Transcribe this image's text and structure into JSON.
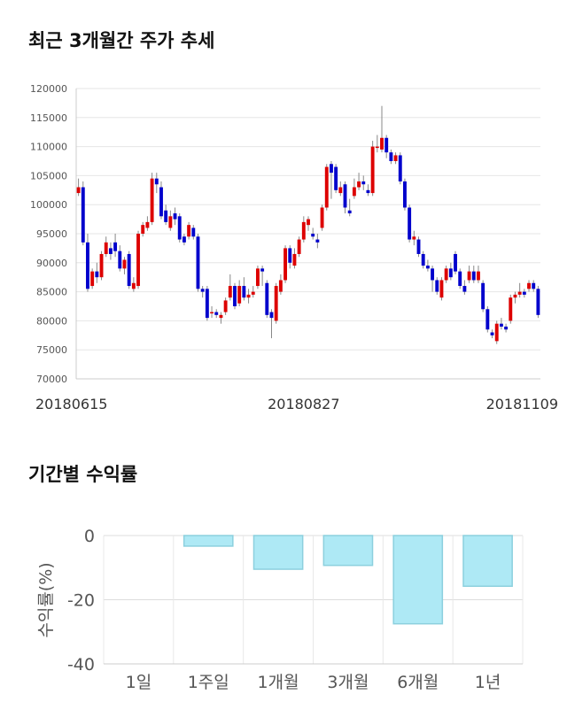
{
  "sections": {
    "price_title": "최근 3개월간 주가 추세",
    "return_title": "기간별 수익률"
  },
  "colors": {
    "up": "#dd0000",
    "down": "#0000cc",
    "return_bar": "#aee9f5",
    "return_bar_border": "#8cd0de"
  },
  "chart_data": [
    {
      "type": "candlestick",
      "title": "최근 3개월간 주가 추세",
      "ylim": [
        70000,
        120000
      ],
      "yticks": [
        "120000",
        "115000",
        "110000",
        "105000",
        "100000",
        "95000",
        "90000",
        "85000",
        "80000",
        "75000",
        "70000"
      ],
      "ytick_values": [
        120000,
        115000,
        110000,
        105000,
        100000,
        95000,
        90000,
        85000,
        80000,
        75000,
        70000
      ],
      "x_labels": [
        "20180615",
        "20180827",
        "20181109"
      ],
      "x_label_index": [
        0,
        49,
        98
      ],
      "grid": true,
      "candles": [
        [
          102000,
          103000,
          104500,
          101500
        ],
        [
          103000,
          93500,
          104000,
          93000
        ],
        [
          93500,
          85500,
          95000,
          85000
        ],
        [
          86000,
          88500,
          89000,
          85500
        ],
        [
          88500,
          87500,
          90000,
          86500
        ],
        [
          87500,
          91500,
          92000,
          87000
        ],
        [
          91500,
          93500,
          94500,
          91000
        ],
        [
          92500,
          91500,
          93500,
          90500
        ],
        [
          93500,
          92000,
          95000,
          91000
        ],
        [
          92000,
          89000,
          93000,
          88500
        ],
        [
          89000,
          90500,
          91000,
          88000
        ],
        [
          91500,
          86000,
          92000,
          85500
        ],
        [
          85500,
          86500,
          87500,
          85000
        ],
        [
          86000,
          95000,
          95500,
          85500
        ],
        [
          95000,
          96500,
          97000,
          94500
        ],
        [
          96000,
          97000,
          98000,
          95500
        ],
        [
          97000,
          104500,
          105500,
          96500
        ],
        [
          104500,
          103500,
          105500,
          102000
        ],
        [
          103000,
          98000,
          104000,
          97500
        ],
        [
          99000,
          97000,
          100000,
          96500
        ],
        [
          96000,
          98000,
          99000,
          95500
        ],
        [
          98500,
          97500,
          99500,
          96500
        ],
        [
          98000,
          94000,
          98500,
          93500
        ],
        [
          94500,
          93500,
          95000,
          93000
        ],
        [
          94500,
          96500,
          97000,
          94000
        ],
        [
          96000,
          94500,
          96500,
          94000
        ],
        [
          94500,
          85500,
          95000,
          85000
        ],
        [
          85500,
          85000,
          86000,
          84000
        ],
        [
          85500,
          80500,
          86000,
          80000
        ],
        [
          81500,
          81500,
          82500,
          80500
        ],
        [
          81500,
          81000,
          82000,
          80500
        ],
        [
          80500,
          81000,
          81500,
          79500
        ],
        [
          81500,
          83500,
          84000,
          81000
        ],
        [
          84000,
          86000,
          88000,
          83500
        ],
        [
          86000,
          82500,
          86500,
          82000
        ],
        [
          83000,
          86000,
          87000,
          82500
        ],
        [
          86000,
          84000,
          87500,
          83500
        ],
        [
          84000,
          84500,
          85500,
          83000
        ],
        [
          84500,
          85000,
          86000,
          84000
        ],
        [
          86000,
          89000,
          89500,
          85500
        ],
        [
          89000,
          88500,
          89500,
          86000
        ],
        [
          86500,
          81000,
          87000,
          80500
        ],
        [
          81500,
          80500,
          82000,
          77000
        ],
        [
          80000,
          86000,
          86500,
          79500
        ],
        [
          85000,
          87000,
          88000,
          84500
        ],
        [
          87000,
          92500,
          93000,
          86500
        ],
        [
          92500,
          90000,
          93000,
          89000
        ],
        [
          89500,
          91500,
          92500,
          89000
        ],
        [
          91500,
          94000,
          94500,
          91000
        ],
        [
          94000,
          97000,
          98000,
          93500
        ],
        [
          96500,
          97500,
          98000,
          95500
        ],
        [
          95000,
          94500,
          96000,
          94000
        ],
        [
          94000,
          93500,
          95000,
          92500
        ],
        [
          96000,
          99500,
          100000,
          95500
        ],
        [
          99500,
          106500,
          107000,
          99000
        ],
        [
          107000,
          105500,
          107500,
          101000
        ],
        [
          106500,
          102500,
          107000,
          102000
        ],
        [
          102000,
          103000,
          104000,
          101500
        ],
        [
          103500,
          99500,
          104000,
          98500
        ],
        [
          99000,
          98500,
          101000,
          98000
        ],
        [
          101500,
          103000,
          104500,
          101000
        ],
        [
          103000,
          104000,
          105500,
          102500
        ],
        [
          104000,
          103500,
          105000,
          102500
        ],
        [
          102500,
          102000,
          103500,
          101500
        ],
        [
          102000,
          110000,
          111000,
          101500
        ],
        [
          110000,
          110000,
          112000,
          109000
        ],
        [
          109500,
          111500,
          117000,
          109000
        ],
        [
          111500,
          109000,
          112000,
          108000
        ],
        [
          109000,
          107500,
          109500,
          107000
        ],
        [
          107500,
          108500,
          109000,
          107000
        ],
        [
          108500,
          104000,
          109000,
          103500
        ],
        [
          104000,
          99500,
          104500,
          99000
        ],
        [
          99500,
          94000,
          100000,
          93500
        ],
        [
          94000,
          94500,
          95500,
          93000
        ],
        [
          94000,
          91500,
          94500,
          91000
        ],
        [
          91500,
          89500,
          92000,
          89000
        ],
        [
          89500,
          89000,
          90500,
          88500
        ],
        [
          89000,
          87000,
          89500,
          85000
        ],
        [
          87000,
          85000,
          87500,
          84500
        ],
        [
          84000,
          87000,
          87500,
          83500
        ],
        [
          87000,
          89000,
          89500,
          86500
        ],
        [
          89000,
          87500,
          90000,
          87000
        ],
        [
          91500,
          88500,
          92000,
          88000
        ],
        [
          88500,
          86000,
          89000,
          85500
        ],
        [
          86000,
          85000,
          87000,
          84500
        ],
        [
          87000,
          88500,
          89500,
          86500
        ],
        [
          88500,
          87000,
          89500,
          86500
        ],
        [
          87000,
          88500,
          89500,
          86500
        ],
        [
          86500,
          82000,
          87000,
          81500
        ],
        [
          82000,
          78500,
          82500,
          78000
        ],
        [
          78000,
          77500,
          78500,
          77000
        ],
        [
          76500,
          79500,
          80000,
          76000
        ],
        [
          79500,
          79000,
          80500,
          78500
        ],
        [
          79000,
          78500,
          79500,
          78000
        ],
        [
          80000,
          84000,
          84500,
          79500
        ],
        [
          84000,
          84500,
          85000,
          83000
        ],
        [
          84500,
          85000,
          86500,
          84000
        ],
        [
          85000,
          84500,
          85500,
          84000
        ],
        [
          85500,
          86500,
          87000,
          85000
        ],
        [
          86500,
          85500,
          87000,
          85000
        ],
        [
          85500,
          81000,
          86000,
          80500
        ]
      ]
    },
    {
      "type": "bar",
      "title": "기간별 수익률",
      "categories": [
        "1일",
        "1주일",
        "1개월",
        "3개월",
        "6개월",
        "1년"
      ],
      "values": [
        0.0,
        -3.3,
        -10.5,
        -9.3,
        -27.5,
        -15.8
      ],
      "ylabel": "수익률(%)",
      "ylim": [
        -40,
        0
      ],
      "yticks": [
        "0",
        "-20",
        "-40"
      ],
      "ytick_values": [
        0,
        -20,
        -40
      ],
      "grid": true
    }
  ]
}
